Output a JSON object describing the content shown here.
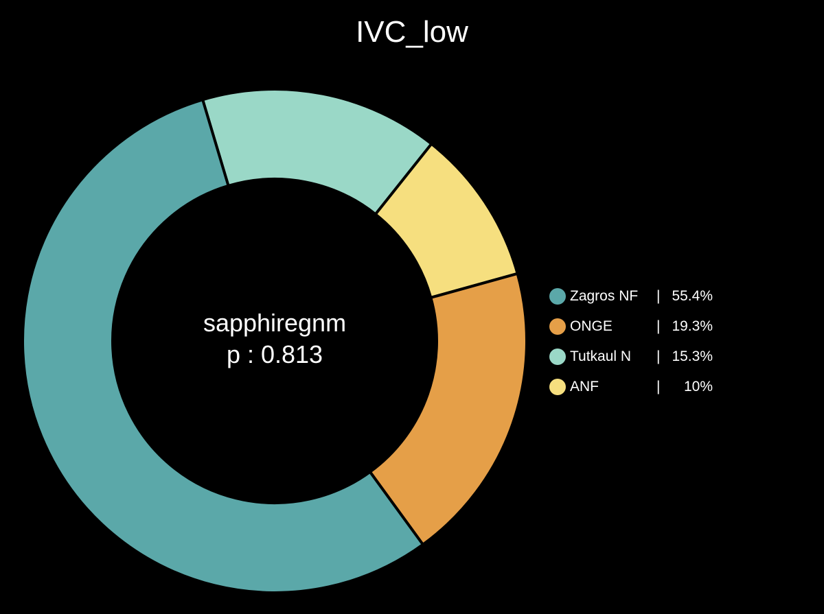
{
  "chart_data": {
    "type": "pie",
    "title": "IVC_low",
    "center_text": [
      "sapphiregnm",
      "p : 0.813"
    ],
    "categories": [
      "Zagros NF",
      "ONGE",
      "Tutkaul N",
      "ANF"
    ],
    "values": [
      55.4,
      19.3,
      15.3,
      10
    ],
    "value_labels": [
      "55.4%",
      "19.3%",
      "15.3%",
      "10%"
    ],
    "slice_order_clockwise_from_top": [
      "Tutkaul N",
      "ANF",
      "ONGE",
      "Zagros NF"
    ],
    "donut": true,
    "legend_position": "right",
    "colors": {
      "Zagros NF": "#5ba8a9",
      "ONGE": "#e59f48",
      "Tutkaul N": "#9ad8c7",
      "ANF": "#f6df7f",
      "background": "#000000",
      "separator": "#000000"
    }
  },
  "legend": {
    "separator": "|"
  }
}
